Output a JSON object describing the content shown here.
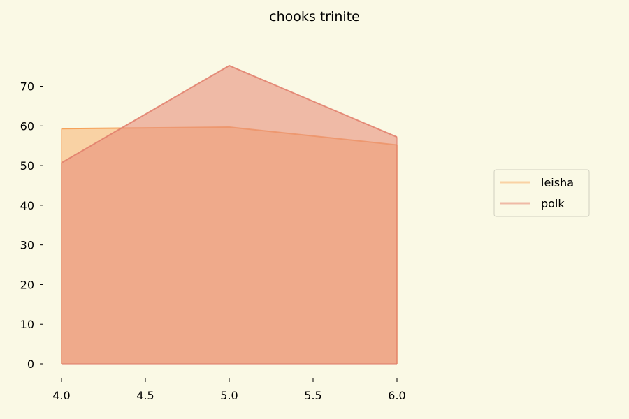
{
  "chart_data": {
    "type": "area",
    "title": "chooks trinite",
    "xlabel": "",
    "ylabel": "",
    "x": [
      4.0,
      5.0,
      6.0
    ],
    "xlim": [
      4.0,
      6.0
    ],
    "ylim": [
      0,
      75.2
    ],
    "xticks": [
      "4.0",
      "4.5",
      "5.0",
      "5.5",
      "6.0"
    ],
    "yticks": [
      "0",
      "10",
      "20",
      "30",
      "40",
      "50",
      "60",
      "70"
    ],
    "grid": false,
    "legend_position": "right",
    "series": [
      {
        "name": "leisha",
        "values": [
          59.3,
          59.7,
          55.2
        ],
        "fill": "#f8b878",
        "line": "#f59a4e"
      },
      {
        "name": "polk",
        "values": [
          50.7,
          75.2,
          57.2
        ],
        "fill": "#e8907c",
        "line": "#e07c6a"
      }
    ]
  }
}
